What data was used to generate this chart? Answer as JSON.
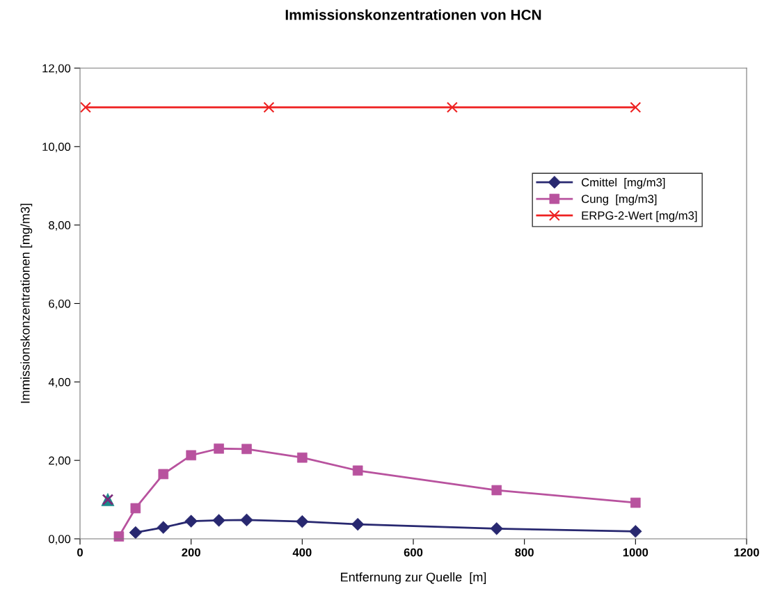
{
  "chart_data": {
    "type": "line",
    "title": "Immissionskonzentrationen von HCN",
    "xlabel": "Entfernung zur Quelle  [m]",
    "ylabel": "Immissionskonzentrationen [mg/m3]",
    "xlim": [
      0,
      1200
    ],
    "xticks": [
      0,
      200,
      400,
      600,
      800,
      1000,
      1200
    ],
    "ylim": [
      0,
      12
    ],
    "yticks": [
      {
        "value": 0,
        "label": "0,00"
      },
      {
        "value": 2,
        "label": "2,00"
      },
      {
        "value": 4,
        "label": "4,00"
      },
      {
        "value": 6,
        "label": "6,00"
      },
      {
        "value": 8,
        "label": "8,00"
      },
      {
        "value": 10,
        "label": "10,00"
      },
      {
        "value": 12,
        "label": "12,00"
      }
    ],
    "grid": false,
    "legend": "right",
    "series": [
      {
        "name": "Cmittel  [mg/m3]",
        "color": "#282870",
        "marker": "diamond",
        "x": [
          100,
          150,
          200,
          250,
          300,
          400,
          500,
          750,
          1000
        ],
        "values": [
          0.16,
          0.29,
          0.45,
          0.47,
          0.48,
          0.44,
          0.37,
          0.26,
          0.19
        ]
      },
      {
        "name": "Cung  [mg/m3]",
        "color": "#b8529e",
        "marker": "square",
        "x": [
          70,
          100,
          150,
          200,
          250,
          300,
          400,
          500,
          750,
          1000
        ],
        "values": [
          0.06,
          0.78,
          1.65,
          2.13,
          2.3,
          2.29,
          2.07,
          1.74,
          1.24,
          0.92
        ]
      },
      {
        "name": "ERPG-2-Wert [mg/m3]",
        "color": "#ee2222",
        "marker": "cross",
        "x": [
          10,
          340,
          670,
          1000
        ],
        "values": [
          11,
          11,
          11,
          11
        ]
      },
      {
        "type": "scatter",
        "color": "#1a8a8a",
        "marker": "triangle",
        "x": [
          50
        ],
        "values": [
          1.0
        ]
      },
      {
        "type": "scatter",
        "color": "#7a2a7a",
        "marker": "cross",
        "x": [
          50
        ],
        "values": [
          1.0
        ]
      }
    ]
  }
}
